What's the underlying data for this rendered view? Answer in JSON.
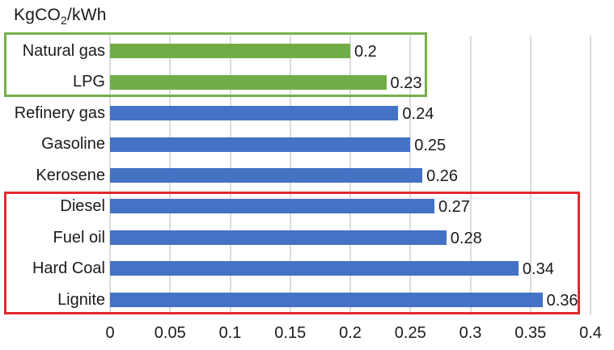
{
  "chart_data": {
    "type": "bar",
    "orientation": "horizontal",
    "title": "KgCO2/kWh",
    "title_parts": {
      "pre": "KgCO",
      "sub": "2",
      "post": "/kWh"
    },
    "categories": [
      "Natural gas",
      "LPG",
      "Refinery gas",
      "Gasoline",
      "Kerosene",
      "Diesel",
      "Fuel oil",
      "Hard Coal",
      "Lignite"
    ],
    "values": [
      0.2,
      0.23,
      0.24,
      0.25,
      0.26,
      0.27,
      0.28,
      0.34,
      0.36
    ],
    "data_labels": [
      "0.2",
      "0.23",
      "0.24",
      "0.25",
      "0.26",
      "0.27",
      "0.28",
      "0.34",
      "0.36"
    ],
    "bar_colors": [
      "green",
      "green",
      "blue",
      "blue",
      "blue",
      "blue",
      "blue",
      "blue",
      "blue"
    ],
    "xlim": [
      0,
      0.4
    ],
    "x_ticks": [
      "0",
      "0.05",
      "0.1",
      "0.15",
      "0.2",
      "0.25",
      "0.3",
      "0.35",
      "0.4"
    ],
    "ylabel": "",
    "xlabel": "",
    "grid": "vertical",
    "legend": "none",
    "colors": {
      "green": "#70AD47",
      "blue": "#4472C4",
      "grid": "#DCDCDC",
      "text": "#1B1B1B",
      "green_box_border": "#74B04C",
      "red_box_border": "#E2292E"
    },
    "annotations": [
      {
        "kind": "group-box",
        "name": "low-emission-group",
        "border_color_key": "green_box_border",
        "categories": [
          "Natural gas",
          "LPG"
        ]
      },
      {
        "kind": "group-box",
        "name": "high-emission-group",
        "border_color_key": "red_box_border",
        "categories": [
          "Diesel",
          "Fuel oil",
          "Hard Coal",
          "Lignite"
        ]
      }
    ]
  }
}
